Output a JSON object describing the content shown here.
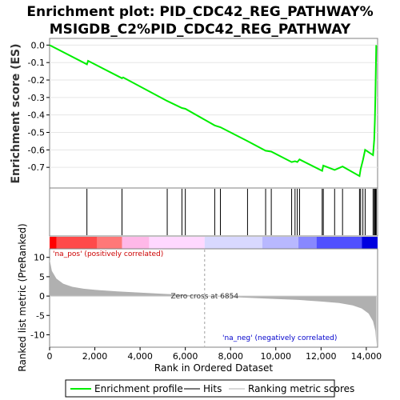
{
  "chart_data": {
    "type": "line",
    "title_line1": "Enrichment plot: PID_CDC42_REG_PATHWAY%",
    "title_line2": "MSIGDB_C2%PID_CDC42_REG_PATHWAY",
    "es_ylabel": "Enrichment score (ES)",
    "ranked_ylabel": "Ranked list metric (PreRanked)",
    "xlabel": "Rank in Ordered Dataset",
    "xlim": [
      0,
      14500
    ],
    "x_ticks": [
      0,
      2000,
      4000,
      6000,
      8000,
      10000,
      12000,
      14000
    ],
    "x_tick_labels": [
      "0",
      "2,000",
      "4,000",
      "6,000",
      "8,000",
      "10,000",
      "12,000",
      "14,000"
    ],
    "es_ylim": [
      -0.8,
      0.02
    ],
    "es_ticks": [
      0.0,
      -0.1,
      -0.2,
      -0.3,
      -0.4,
      -0.5,
      -0.6,
      -0.7
    ],
    "es_tick_labels": [
      "0.0",
      "-0.1",
      "-0.2",
      "-0.3",
      "-0.4",
      "-0.5",
      "-0.6",
      "-0.7"
    ],
    "metric_ylim": [
      -13,
      12
    ],
    "metric_ticks": [
      10,
      5,
      0,
      -5,
      -10
    ],
    "metric_tick_labels": [
      "10",
      "5",
      "0",
      "-5",
      "-10"
    ],
    "enrichment_profile": {
      "x": [
        0,
        1650,
        1700,
        3200,
        3250,
        5200,
        5850,
        6000,
        7300,
        7550,
        8750,
        9550,
        9800,
        10700,
        10850,
        10950,
        11050,
        12050,
        12100,
        12600,
        12950,
        13700,
        13750,
        13850,
        13950,
        14300,
        14350,
        14380,
        14400,
        14420,
        14440
      ],
      "es": [
        0.0,
        -0.11,
        -0.09,
        -0.19,
        -0.185,
        -0.32,
        -0.36,
        -0.365,
        -0.46,
        -0.47,
        -0.55,
        -0.605,
        -0.61,
        -0.67,
        -0.665,
        -0.67,
        -0.655,
        -0.72,
        -0.69,
        -0.715,
        -0.695,
        -0.75,
        -0.71,
        -0.66,
        -0.6,
        -0.63,
        -0.54,
        -0.43,
        -0.3,
        -0.17,
        0.0
      ]
    },
    "hits": [
      1650,
      3200,
      5200,
      5850,
      6000,
      7300,
      7550,
      8750,
      9550,
      9800,
      10700,
      10850,
      10950,
      11050,
      12050,
      12100,
      12600,
      12950,
      13700,
      13750,
      13850,
      13950,
      14300,
      14350,
      14380,
      14400,
      14420,
      14440
    ],
    "ranked_metric": {
      "x": [
        0,
        100,
        300,
        600,
        1000,
        1500,
        2000,
        3000,
        4000,
        5000,
        6000,
        6854,
        8000,
        9000,
        10000,
        11000,
        12000,
        12800,
        13400,
        13800,
        14100,
        14300,
        14400,
        14450
      ],
      "value": [
        9.5,
        6.5,
        4.5,
        3.2,
        2.4,
        1.9,
        1.6,
        1.2,
        0.9,
        0.6,
        0.3,
        0.0,
        -0.25,
        -0.5,
        -0.75,
        -1.0,
        -1.4,
        -1.8,
        -2.4,
        -3.2,
        -4.5,
        -6.5,
        -9.0,
        -12.5
      ]
    },
    "zero_cross_label": "Zero cross at 6854",
    "zero_cross_rank": 6854,
    "pos_label": "'na_pos' (positively correlated)",
    "neg_label": "'na_neg' (negatively correlated)",
    "legend": {
      "items": [
        "Enrichment profile",
        "Hits",
        "Ranking metric scores"
      ],
      "colors": [
        "#00ee00",
        "#7a7a7a",
        "#d8d8d8"
      ]
    },
    "colors": {
      "profile": "#00ee00",
      "pos_label": "#cc0000",
      "neg_label": "#0000cc",
      "metric_fill": "#b0b0b0",
      "heat_pos": [
        "#ff0000",
        "#ff4a4a",
        "#ff7878",
        "#ffb8e8",
        "#ffd8ff"
      ],
      "heat_neg": [
        "#d8d8ff",
        "#b8b8ff",
        "#8888ff",
        "#5050ff",
        "#0000e0"
      ]
    }
  }
}
